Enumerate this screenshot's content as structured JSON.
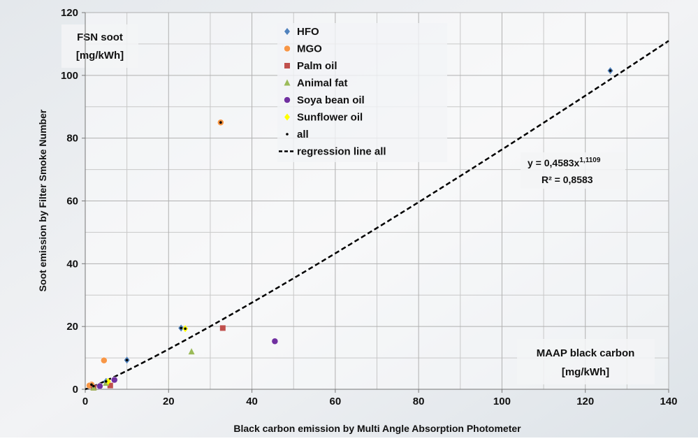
{
  "chart_data": {
    "type": "scatter",
    "x_label": "Black carbon emission by Multi Angle Absorption Photometer",
    "y_label": "Soot emission by Filter Smoke Number",
    "annotations": [
      "FSN soot",
      "[mg/kWh]",
      "MAAP black carbon",
      "[mg/kWh]"
    ],
    "xlim": [
      0,
      140
    ],
    "ylim": [
      0,
      120
    ],
    "xticks": [
      0,
      20,
      40,
      60,
      80,
      100,
      120,
      140
    ],
    "yticks": [
      0,
      20,
      40,
      60,
      80,
      100,
      120
    ],
    "x_minor_grid": [
      10,
      30,
      50,
      70,
      90,
      110,
      130
    ],
    "y_minor_grid": [
      10,
      30,
      50,
      70,
      90,
      110
    ],
    "grid": true,
    "series": [
      {
        "name": "HFO",
        "color": "#4F81BD",
        "marker": "diamond",
        "x": [
          126,
          23,
          10,
          2,
          5
        ],
        "values": [
          101.5,
          19.5,
          9.3,
          1,
          2.5
        ]
      },
      {
        "name": "MGO",
        "color": "#F79646",
        "marker": "circle",
        "x": [
          32.5,
          4.5,
          1.5,
          1
        ],
        "values": [
          85,
          9.2,
          1.5,
          1.2
        ]
      },
      {
        "name": "Palm oil",
        "color": "#C0504D",
        "marker": "square",
        "x": [
          33,
          6,
          2
        ],
        "values": [
          19.5,
          1.2,
          0.5
        ]
      },
      {
        "name": "Animal fat",
        "color": "#9BBB59",
        "marker": "triangle",
        "x": [
          25.5,
          2,
          5
        ],
        "values": [
          12,
          0.5,
          2
        ]
      },
      {
        "name": "Soya bean oil",
        "color": "#7030A0",
        "marker": "circle",
        "x": [
          45.5,
          7,
          3.5
        ],
        "values": [
          15.3,
          3,
          1
        ]
      },
      {
        "name": "Sunflower oil",
        "color": "#FFFF00",
        "marker": "diamond",
        "x": [
          24,
          5.5
        ],
        "values": [
          19.3,
          2.5
        ]
      },
      {
        "name": "all",
        "color": "#000000",
        "marker": "dot",
        "x": [
          126,
          32.5,
          24,
          23,
          10,
          5,
          2,
          1.5
        ],
        "values": [
          101.5,
          85,
          19.3,
          19.5,
          9.3,
          2.5,
          1,
          1.5
        ]
      }
    ],
    "regression": {
      "name": "regression line all",
      "color": "#000000",
      "a": 0.4583,
      "b": 1.1109,
      "equation": "y = 0,4583x",
      "exponent": "1,1109",
      "r2_label": "R² = 0,8583"
    }
  }
}
